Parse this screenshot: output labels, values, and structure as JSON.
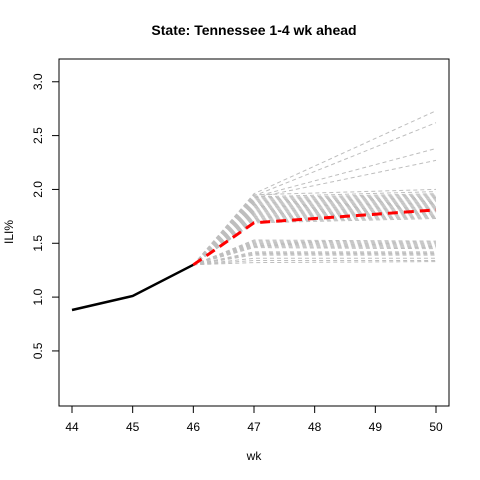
{
  "chart_data": {
    "type": "line",
    "title": "State: Tennessee 1-4 wk ahead",
    "xlabel": "wk",
    "ylabel": "ILI%",
    "xlim": [
      44,
      50
    ],
    "ylim": [
      0.1,
      3.1
    ],
    "x_ticks": [
      44,
      45,
      46,
      47,
      48,
      49,
      50
    ],
    "y_ticks": [
      0.5,
      1.0,
      1.5,
      2.0,
      2.5,
      3.0
    ],
    "y_tick_labels": [
      "0.5",
      "1.0",
      "1.5",
      "2.0",
      "2.5",
      "3.0"
    ],
    "colors": {
      "observed": "#000000",
      "mean": "#ff0000",
      "ensemble": "#bebebe"
    },
    "observed": {
      "x": [
        44,
        45,
        46
      ],
      "y": [
        0.88,
        1.01,
        1.3
      ]
    },
    "mean_forecast": {
      "x": [
        46,
        47,
        50
      ],
      "y": [
        1.3,
        1.69,
        1.81
      ]
    },
    "ensemble": {
      "x": [
        46,
        47,
        50
      ],
      "trajectories": [
        [
          1.3,
          1.96,
          2.73
        ],
        [
          1.3,
          1.94,
          2.62
        ],
        [
          1.3,
          1.93,
          2.38
        ],
        [
          1.3,
          1.92,
          2.27
        ],
        [
          1.3,
          1.95,
          2.0
        ],
        [
          1.3,
          1.93,
          1.98
        ],
        [
          1.3,
          1.92,
          1.96
        ],
        [
          1.3,
          1.91,
          1.95
        ],
        [
          1.3,
          1.9,
          1.94
        ],
        [
          1.3,
          1.89,
          1.93
        ],
        [
          1.3,
          1.88,
          1.92
        ],
        [
          1.3,
          1.87,
          1.91
        ],
        [
          1.3,
          1.86,
          1.9
        ],
        [
          1.3,
          1.85,
          1.89
        ],
        [
          1.3,
          1.84,
          1.88
        ],
        [
          1.3,
          1.83,
          1.87
        ],
        [
          1.3,
          1.82,
          1.86
        ],
        [
          1.3,
          1.81,
          1.85
        ],
        [
          1.3,
          1.8,
          1.84
        ],
        [
          1.3,
          1.79,
          1.83
        ],
        [
          1.3,
          1.78,
          1.82
        ],
        [
          1.3,
          1.77,
          1.81
        ],
        [
          1.3,
          1.76,
          1.8
        ],
        [
          1.3,
          1.75,
          1.79
        ],
        [
          1.3,
          1.74,
          1.78
        ],
        [
          1.3,
          1.73,
          1.77
        ],
        [
          1.3,
          1.72,
          1.76
        ],
        [
          1.3,
          1.71,
          1.75
        ],
        [
          1.3,
          1.7,
          1.74
        ],
        [
          1.3,
          1.69,
          1.73
        ],
        [
          1.3,
          1.53,
          1.52
        ],
        [
          1.3,
          1.52,
          1.51
        ],
        [
          1.3,
          1.51,
          1.5
        ],
        [
          1.3,
          1.5,
          1.49
        ],
        [
          1.3,
          1.49,
          1.48
        ],
        [
          1.3,
          1.48,
          1.47
        ],
        [
          1.3,
          1.47,
          1.46
        ],
        [
          1.3,
          1.46,
          1.45
        ],
        [
          1.3,
          1.42,
          1.42
        ],
        [
          1.3,
          1.41,
          1.41
        ],
        [
          1.3,
          1.4,
          1.4
        ],
        [
          1.3,
          1.39,
          1.39
        ],
        [
          1.3,
          1.36,
          1.36
        ],
        [
          1.3,
          1.34,
          1.34
        ],
        [
          1.3,
          1.32,
          1.33
        ]
      ]
    }
  }
}
